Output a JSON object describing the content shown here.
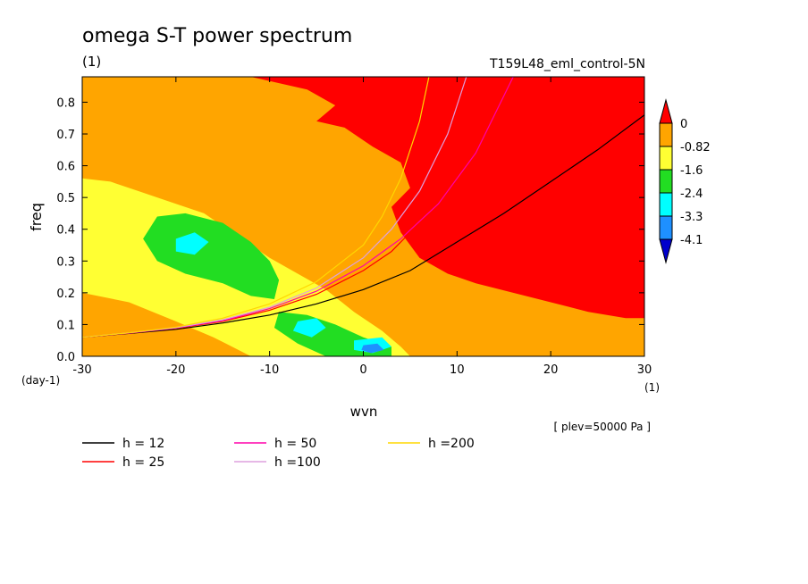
{
  "chart_data": {
    "type": "heatmap",
    "title": "omega S-T power spectrum",
    "units_label": "(1)",
    "run_label": "T159L48_eml_control-5N",
    "xlabel": "wvn",
    "ylabel": "freq",
    "x_units": "(1)",
    "y_units": "(day-1)",
    "xlim": [
      -30,
      30
    ],
    "ylim": [
      0,
      0.88
    ],
    "x_ticks": [
      -30,
      -20,
      -10,
      0,
      10,
      20,
      30
    ],
    "x_tick_labels": [
      "-30",
      "-20",
      "-10",
      "0",
      "10",
      "20",
      "30"
    ],
    "y_ticks": [
      0,
      0.1,
      0.2,
      0.3,
      0.4,
      0.5,
      0.6,
      0.7,
      0.8
    ],
    "y_tick_labels": [
      "0.0",
      "0.1",
      "0.2",
      "0.3",
      "0.4",
      "0.5",
      "0.6",
      "0.7",
      "0.8"
    ],
    "colorbar": {
      "levels": [
        0,
        -0.82,
        -1.6,
        -2.4,
        -3.3,
        -4.1
      ],
      "labels": [
        "0",
        "-0.82",
        "-1.6",
        "-2.4",
        "-3.3",
        "-4.1"
      ],
      "colors": [
        "#ff0000",
        "#ffa500",
        "#ffff33",
        "#22dd22",
        "#00ffff",
        "#1e90ff",
        "#0000cc"
      ]
    },
    "regions": [
      {
        "name": "red-high",
        "color": "#ff0000",
        "points": [
          [
            -12,
            0.88
          ],
          [
            -6,
            0.84
          ],
          [
            -3,
            0.79
          ],
          [
            -5,
            0.74
          ],
          [
            -2,
            0.72
          ],
          [
            1,
            0.66
          ],
          [
            4,
            0.61
          ],
          [
            5,
            0.53
          ],
          [
            3,
            0.47
          ],
          [
            4,
            0.39
          ],
          [
            6,
            0.31
          ],
          [
            9,
            0.26
          ],
          [
            12,
            0.23
          ],
          [
            16,
            0.2
          ],
          [
            20,
            0.17
          ],
          [
            24,
            0.14
          ],
          [
            28,
            0.12
          ],
          [
            30,
            0.12
          ],
          [
            30,
            0.88
          ]
        ]
      },
      {
        "name": "yellow-band",
        "color": "#ffff33",
        "points": [
          [
            -30,
            0.56
          ],
          [
            -27,
            0.55
          ],
          [
            -24,
            0.52
          ],
          [
            -20,
            0.48
          ],
          [
            -17,
            0.45
          ],
          [
            -15,
            0.41
          ],
          [
            -12,
            0.35
          ],
          [
            -10,
            0.31
          ],
          [
            -7,
            0.26
          ],
          [
            -4,
            0.21
          ],
          [
            -1,
            0.14
          ],
          [
            2,
            0.08
          ],
          [
            4,
            0.03
          ],
          [
            5,
            0
          ],
          [
            -12,
            0
          ],
          [
            -16,
            0.06
          ],
          [
            -20,
            0.11
          ],
          [
            -25,
            0.17
          ],
          [
            -30,
            0.2
          ]
        ]
      },
      {
        "name": "green-band",
        "color": "#22dd22",
        "points": [
          [
            -22,
            0.44
          ],
          [
            -19,
            0.45
          ],
          [
            -15,
            0.42
          ],
          [
            -12,
            0.36
          ],
          [
            -10,
            0.3
          ],
          [
            -9,
            0.24
          ],
          [
            -9.5,
            0.18
          ],
          [
            -12,
            0.19
          ],
          [
            -15,
            0.23
          ],
          [
            -19,
            0.26
          ],
          [
            -22,
            0.3
          ],
          [
            -23.5,
            0.37
          ]
        ]
      },
      {
        "name": "green-low",
        "color": "#22dd22",
        "points": [
          [
            -9,
            0.14
          ],
          [
            -6,
            0.13
          ],
          [
            -3,
            0.1
          ],
          [
            0,
            0.06
          ],
          [
            3,
            0.03
          ],
          [
            3,
            0
          ],
          [
            -4,
            0
          ],
          [
            -7,
            0.04
          ],
          [
            -9.5,
            0.09
          ]
        ]
      },
      {
        "name": "cyan-patch-a",
        "color": "#00ffff",
        "points": [
          [
            -20,
            0.37
          ],
          [
            -18,
            0.39
          ],
          [
            -16.5,
            0.36
          ],
          [
            -18,
            0.32
          ],
          [
            -20,
            0.33
          ]
        ]
      },
      {
        "name": "cyan-patch-b",
        "color": "#00ffff",
        "points": [
          [
            -7,
            0.11
          ],
          [
            -5,
            0.12
          ],
          [
            -4,
            0.09
          ],
          [
            -5.5,
            0.06
          ],
          [
            -7.5,
            0.08
          ]
        ]
      },
      {
        "name": "cyan-patch-c",
        "color": "#00ffff",
        "points": [
          [
            -1,
            0.05
          ],
          [
            2,
            0.06
          ],
          [
            3,
            0.03
          ],
          [
            1,
            0.01
          ],
          [
            -1,
            0.02
          ]
        ]
      },
      {
        "name": "blue-core",
        "color": "#1e90ff",
        "points": [
          [
            0,
            0.035
          ],
          [
            1.5,
            0.04
          ],
          [
            2.2,
            0.02
          ],
          [
            0.8,
            0.01
          ],
          [
            -0.2,
            0.02
          ]
        ]
      }
    ],
    "series": [
      {
        "name": "h = 12",
        "color": "#000000",
        "x": [
          -30,
          -25,
          -20,
          -15,
          -10,
          -5,
          0,
          5,
          10,
          15,
          20,
          25,
          30
        ],
        "y": [
          0.06,
          0.072,
          0.085,
          0.105,
          0.13,
          0.165,
          0.21,
          0.27,
          0.36,
          0.45,
          0.55,
          0.65,
          0.76
        ]
      },
      {
        "name": "h = 25",
        "color": "#ff0000",
        "x": [
          -30,
          -25,
          -20,
          -15,
          -10,
          -5,
          0,
          3,
          6,
          9,
          12
        ],
        "y": [
          0.06,
          0.073,
          0.088,
          0.11,
          0.145,
          0.195,
          0.27,
          0.33,
          0.42,
          0.53,
          0.66
        ]
      },
      {
        "name": "h = 50",
        "color": "#ff00aa",
        "x": [
          -30,
          -25,
          -20,
          -15,
          -10,
          -5,
          0,
          4,
          8,
          12,
          16
        ],
        "y": [
          0.06,
          0.073,
          0.089,
          0.112,
          0.15,
          0.205,
          0.285,
          0.37,
          0.48,
          0.64,
          0.88
        ]
      },
      {
        "name": "h =100",
        "color": "#dda0dd",
        "x": [
          -30,
          -25,
          -20,
          -15,
          -10,
          -5,
          0,
          3,
          6,
          9,
          11
        ],
        "y": [
          0.06,
          0.074,
          0.09,
          0.115,
          0.155,
          0.215,
          0.31,
          0.4,
          0.52,
          0.7,
          0.88
        ]
      },
      {
        "name": "h =200",
        "color": "#ffd700",
        "x": [
          -30,
          -25,
          -20,
          -15,
          -10,
          -5,
          0,
          2,
          4,
          6,
          7
        ],
        "y": [
          0.06,
          0.074,
          0.092,
          0.12,
          0.165,
          0.235,
          0.35,
          0.44,
          0.56,
          0.74,
          0.88
        ]
      }
    ],
    "legend": [
      {
        "label": "h = 12",
        "color": "#000000"
      },
      {
        "label": "h = 50",
        "color": "#ff00aa"
      },
      {
        "label": "h =200",
        "color": "#ffd700"
      },
      {
        "label": "h = 25",
        "color": "#ff0000"
      },
      {
        "label": "h =100",
        "color": "#dda0dd"
      }
    ],
    "annotation": "[ plev=50000 Pa ]"
  }
}
